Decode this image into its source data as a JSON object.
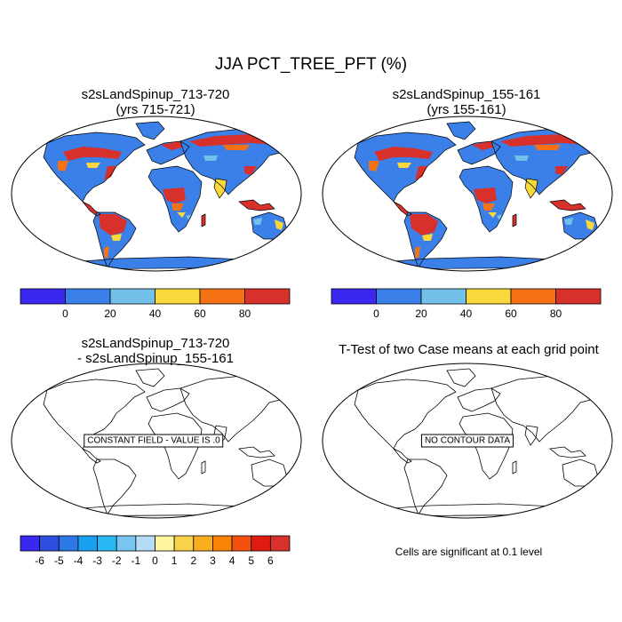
{
  "figure_title": "JJA PCT_TREE_PFT (%)",
  "panels": {
    "top_left": {
      "title_line1": "s2sLandSpinup_713-720",
      "title_line2": "(yrs 715-721)"
    },
    "top_right": {
      "title_line1": "s2sLandSpinup_155-161",
      "title_line2": "(yrs 155-161)"
    },
    "bottom_left": {
      "title_line1": "s2sLandSpinup_713-720",
      "title_line2": "- s2sLandSpinup_155-161",
      "note": "CONSTANT FIELD - VALUE IS .0"
    },
    "bottom_right": {
      "title": "T-Test of two Case means at each grid point",
      "note": "NO CONTOUR DATA",
      "significance_text": "Cells are significant at 0.1 level"
    }
  },
  "colorbar_abs": {
    "labels": [
      "0",
      "20",
      "40",
      "60",
      "80"
    ],
    "colors": [
      "#3a28f0",
      "#3b80e8",
      "#73c0ea",
      "#f8d83a",
      "#f47214",
      "#d8302a"
    ]
  },
  "colorbar_diff": {
    "labels": [
      "-6",
      "-5",
      "-4",
      "-3",
      "-2",
      "-1",
      "0",
      "1",
      "2",
      "3",
      "4",
      "5",
      "6"
    ],
    "colors": [
      "#3a28f0",
      "#2d50e0",
      "#2a78e6",
      "#1aa0f0",
      "#28b8f4",
      "#78c6f0",
      "#b4dcf6",
      "#fff4a0",
      "#fad24a",
      "#f8ae1e",
      "#f88408",
      "#f45010",
      "#e01c10",
      "#d8302a"
    ]
  },
  "map_palette": {
    "ocean": "#ffffff",
    "low": "#3b80e8",
    "light": "#73c0ea",
    "mid": "#f8d83a",
    "high": "#f47214",
    "max": "#d8302a"
  }
}
